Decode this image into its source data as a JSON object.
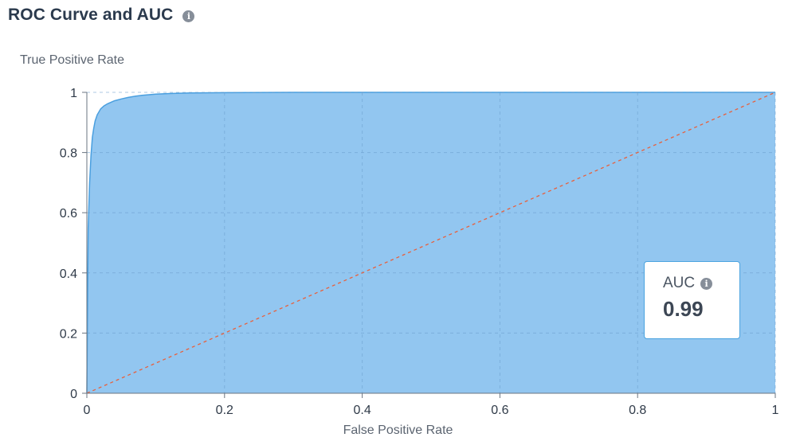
{
  "header": {
    "title": "ROC Curve and AUC",
    "info_icon": "info-icon"
  },
  "auc_card": {
    "label": "AUC",
    "value": "0.99",
    "info_icon": "info-icon"
  },
  "colors": {
    "area_fill": "#92c6f0",
    "curve": "#4a9fdf",
    "diagonal": "#e8603c",
    "grid": "#6a9ccc",
    "card_border": "#4aa3df"
  },
  "chart_data": {
    "type": "area",
    "ylabel": "True Positive Rate",
    "xlabel": "False Positive Rate",
    "xlim": [
      0,
      1
    ],
    "ylim": [
      0,
      1
    ],
    "x_ticks": [
      "0",
      "0.2",
      "0.4",
      "0.6",
      "0.8",
      "1"
    ],
    "y_ticks": [
      "0",
      "0.2",
      "0.4",
      "0.6",
      "0.8",
      "1"
    ],
    "grid": true,
    "series": [
      {
        "values_x": [
          0,
          0.002,
          0.004,
          0.006,
          0.008,
          0.01,
          0.012,
          0.015,
          0.02,
          0.025,
          0.03,
          0.04,
          0.05,
          0.06,
          0.07,
          0.08,
          0.1,
          0.12,
          0.15,
          0.2,
          0.3,
          0.5,
          0.7,
          1.0
        ],
        "values_y": [
          0,
          0.55,
          0.7,
          0.79,
          0.85,
          0.88,
          0.905,
          0.925,
          0.945,
          0.955,
          0.962,
          0.972,
          0.978,
          0.983,
          0.987,
          0.99,
          0.994,
          0.996,
          0.998,
          0.999,
          1,
          1,
          1,
          1
        ]
      }
    ],
    "reference_line": {
      "x": [
        0,
        1
      ],
      "y": [
        0,
        1
      ]
    }
  }
}
